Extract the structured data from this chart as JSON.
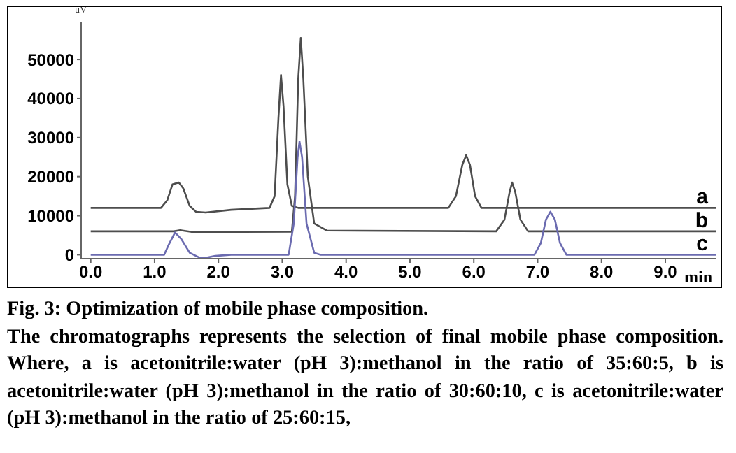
{
  "chart_data": {
    "type": "line",
    "title": "Fig. 3: Optimization of mobile phase composition.",
    "annotations": [
      "The chromatographs represents the selection of final mobile phase composition. Where, a is acetonitrile:water (pH 3):methanol in the ratio of 35:60:5, b is acetonitrile:water (pH 3):methanol in the ratio of 30:60:10, c is acetonitrile:water (pH 3):methanol in the ratio of 25:60:15,"
    ],
    "xlabel": "min",
    "ylabel": "uV",
    "xlim": [
      -0.15,
      9.8
    ],
    "xticks": [
      {
        "value": 0,
        "label": "0.0"
      },
      {
        "value": 1,
        "label": "1.0"
      },
      {
        "value": 2,
        "label": "2.0"
      },
      {
        "value": 3,
        "label": "3.0"
      },
      {
        "value": 4,
        "label": "4.0"
      },
      {
        "value": 5,
        "label": "5.0"
      },
      {
        "value": 6,
        "label": "6.0"
      },
      {
        "value": 7,
        "label": "7.0"
      },
      {
        "value": 8,
        "label": "8.0"
      },
      {
        "value": 9,
        "label": "9.0"
      }
    ],
    "ylim": [
      -1000,
      59500
    ],
    "yticks": [
      0,
      10000,
      20000,
      30000,
      40000,
      50000
    ],
    "grid": false,
    "legend": false,
    "marker": "none",
    "line_style": "solid",
    "series": [
      {
        "name": "a",
        "color": "#4d4d4d",
        "x": [
          0,
          1.1,
          1.2,
          1.28,
          1.38,
          1.45,
          1.55,
          1.65,
          1.8,
          2.2,
          2.8,
          2.88,
          2.94,
          2.98,
          3.02,
          3.08,
          3.15,
          3.25,
          5.6,
          5.72,
          5.82,
          5.88,
          5.94,
          6.02,
          6.12,
          9.8
        ],
        "values": [
          12000,
          12000,
          14000,
          18000,
          18500,
          17000,
          12500,
          11000,
          10800,
          11500,
          12000,
          15000,
          35000,
          46000,
          38000,
          18000,
          12500,
          12000,
          12000,
          15000,
          23000,
          25500,
          23000,
          15000,
          12000,
          12000
        ]
      },
      {
        "name": "b",
        "color": "#4d4d4d",
        "x": [
          0,
          1.3,
          1.4,
          1.6,
          3.15,
          3.2,
          3.25,
          3.29,
          3.33,
          3.4,
          3.5,
          3.7,
          6.35,
          6.48,
          6.56,
          6.6,
          6.65,
          6.73,
          6.85,
          9.8
        ],
        "values": [
          6000,
          6000,
          6300,
          5800,
          5900,
          15000,
          45000,
          55500,
          45000,
          20000,
          8000,
          6200,
          6000,
          9000,
          16000,
          18500,
          16000,
          9000,
          6000,
          6000
        ]
      },
      {
        "name": "c",
        "color": "#6b6bb0",
        "x": [
          0,
          1.15,
          1.22,
          1.32,
          1.42,
          1.55,
          1.7,
          1.8,
          1.95,
          2.2,
          3.1,
          3.18,
          3.24,
          3.27,
          3.31,
          3.38,
          3.5,
          3.6,
          6.95,
          7.05,
          7.13,
          7.2,
          7.27,
          7.35,
          7.45,
          9.8
        ],
        "values": [
          0,
          0,
          2500,
          5700,
          4000,
          500,
          -700,
          -800,
          -300,
          0,
          0,
          8000,
          25000,
          29000,
          25000,
          8000,
          500,
          0,
          0,
          3000,
          9000,
          11000,
          9000,
          3000,
          0,
          0
        ]
      }
    ]
  }
}
